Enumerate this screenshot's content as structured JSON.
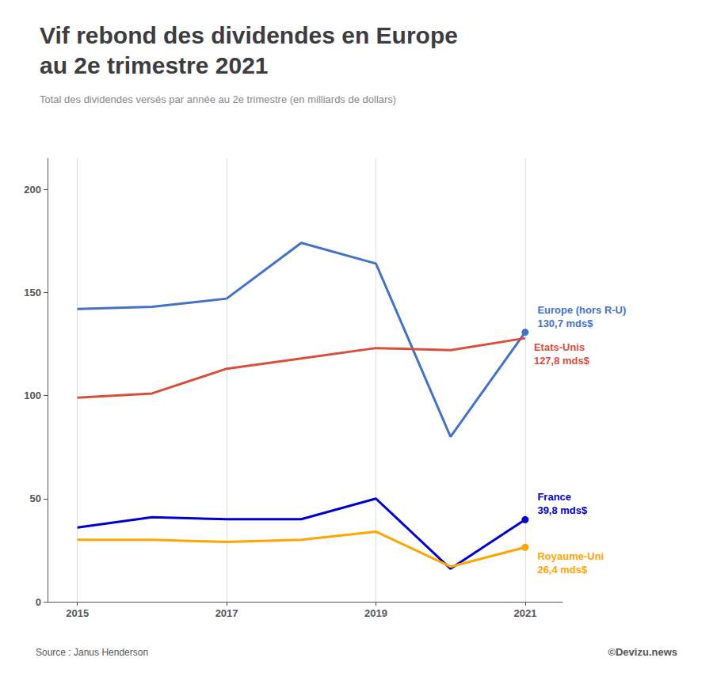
{
  "chart_data": {
    "type": "line",
    "title": "Vif rebond des dividendes en Europe\nau 2e trimestre 2021",
    "subtitle": "Total des dividendes versés par année au 2e trimestre (en milliards de dollars)",
    "annotations": [
      "Source : Janus Henderson",
      "©Devizu.news"
    ],
    "x": [
      2015,
      2016,
      2017,
      2018,
      2019,
      2020,
      2021
    ],
    "series": [
      {
        "name": "Europe (hors R-U)",
        "color": "#4472C4",
        "values": [
          142,
          143,
          147,
          174,
          164,
          80,
          130.7
        ],
        "value_labels": [
          null,
          null,
          null,
          null,
          null,
          null,
          "130,7 mds$"
        ],
        "marker": "circle"
      },
      {
        "name": "Etats-Unis",
        "color": "#D94F3D",
        "values": [
          99,
          101,
          113,
          118,
          123,
          122,
          127.8
        ],
        "value_labels": [
          null,
          null,
          null,
          null,
          null,
          null,
          "127,8 mds$"
        ]
      },
      {
        "name": "France",
        "color": "#0000CC",
        "values": [
          36,
          41,
          40,
          40,
          50,
          16,
          39.8
        ],
        "value_labels": [
          null,
          null,
          null,
          null,
          null,
          null,
          "39,8 mds$"
        ],
        "marker": "circle"
      },
      {
        "name": "Royaume-Uni",
        "color": "#FFA500",
        "values": [
          30,
          30,
          29,
          30,
          34,
          17,
          26.4
        ],
        "value_labels": [
          null,
          null,
          null,
          null,
          null,
          null,
          "26,4 mds$"
        ],
        "marker": "circle"
      }
    ],
    "xlim": [
      2014.6,
      2021.5
    ],
    "xticks": [
      2015,
      2017,
      2019,
      2021
    ],
    "ylim": [
      0,
      215
    ],
    "yticks": [
      0,
      50,
      100,
      150,
      200
    ],
    "grid": true
  }
}
